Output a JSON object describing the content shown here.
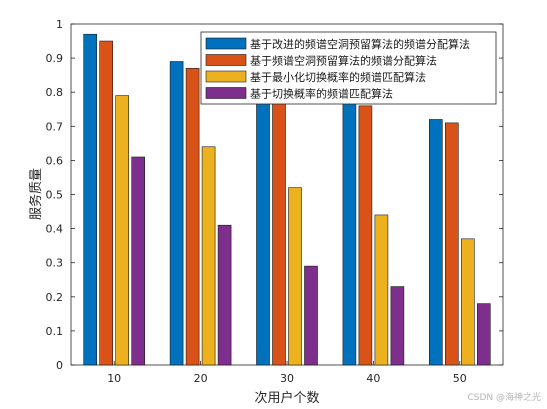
{
  "chart_data": {
    "type": "bar",
    "xlabel": "次用户个数",
    "ylabel": "服务质量",
    "ylim": [
      0,
      1
    ],
    "yticks": [
      "0",
      "0.1",
      "0.2",
      "0.3",
      "0.4",
      "0.5",
      "0.6",
      "0.7",
      "0.8",
      "0.9",
      "1"
    ],
    "categories": [
      "10",
      "20",
      "30",
      "40",
      "50"
    ],
    "legend_position": "top-right",
    "grid": false,
    "series": [
      {
        "name": "基于改进的频谱空洞预留算法的频谱分配算法",
        "color": "#0072BD",
        "values": [
          0.97,
          0.89,
          0.85,
          0.83,
          0.72
        ]
      },
      {
        "name": "基于频谱空洞预留算法的频谱分配算法",
        "color": "#D95319",
        "values": [
          0.95,
          0.87,
          0.8,
          0.76,
          0.71
        ]
      },
      {
        "name": "基于最小化切换概率的频谱匹配算法",
        "color": "#EDB120",
        "values": [
          0.79,
          0.64,
          0.52,
          0.44,
          0.37
        ]
      },
      {
        "name": "基于切换概率的频谱匹配算法",
        "color": "#7E2F8E",
        "values": [
          0.61,
          0.41,
          0.29,
          0.23,
          0.18
        ]
      }
    ]
  },
  "watermark": "CSDN @海神之光"
}
